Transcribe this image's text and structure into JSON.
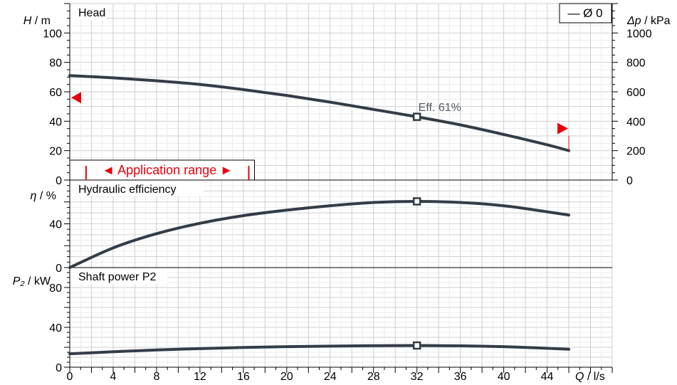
{
  "chart_data": [
    {
      "type": "line",
      "panel": "head",
      "title": "Head",
      "ylabel_var": "H",
      "ylabel_unit": " / m",
      "y2label_var": "Δp",
      "y2label_unit": " / kPa",
      "ylim": [
        0,
        120
      ],
      "yticks": [
        0,
        20,
        40,
        60,
        80,
        100
      ],
      "y2lim": [
        0,
        1200
      ],
      "y2ticks": [
        0,
        200,
        400,
        600,
        800,
        1000
      ],
      "xlim": [
        0,
        50
      ],
      "series": [
        {
          "name": "Ø 0",
          "color": "#333d47",
          "x": [
            0,
            4,
            8,
            12,
            16,
            20,
            24,
            28,
            32,
            36,
            40,
            44,
            46
          ],
          "y": [
            71,
            69.5,
            67.5,
            65,
            61.5,
            57.5,
            53,
            48,
            43,
            37.5,
            31,
            24,
            20
          ]
        }
      ],
      "duty_point": {
        "x": 32,
        "y": 43,
        "label": "Eff.  61%"
      },
      "application_range": {
        "label": "◄ Application range ►",
        "x_start": 1.5,
        "x_end": 16.5
      },
      "range_markers": {
        "left_y": 56,
        "right_x": 46,
        "right_y": 35
      },
      "legend": {
        "label": "— Ø 0",
        "position": "top-right"
      }
    },
    {
      "type": "line",
      "panel": "efficiency",
      "title": "Hydraulic efficiency",
      "ylabel_var": "η",
      "ylabel_unit": " / %",
      "ylim": [
        0,
        80
      ],
      "yticks": [
        0,
        40
      ],
      "xlim": [
        0,
        50
      ],
      "series": [
        {
          "color": "#333d47",
          "x": [
            0,
            4,
            8,
            12,
            16,
            20,
            24,
            28,
            32,
            36,
            40,
            44,
            46
          ],
          "y": [
            0,
            18,
            31,
            40.5,
            47.5,
            52.5,
            56.5,
            59.5,
            60.5,
            59.5,
            56.5,
            51,
            48
          ]
        }
      ],
      "duty_point": {
        "x": 32,
        "y": 60.5
      }
    },
    {
      "type": "line",
      "panel": "power",
      "title": "Shaft power P2",
      "ylabel_var": "P₂",
      "ylabel_unit": " / kW",
      "ylim": [
        0,
        100
      ],
      "yticks": [
        0,
        40,
        80
      ],
      "xlim": [
        0,
        50
      ],
      "xticks": [
        0,
        4,
        8,
        12,
        16,
        20,
        24,
        28,
        32,
        36,
        40,
        44
      ],
      "xlabel_var": "Q",
      "xlabel_unit": " / l/s",
      "series": [
        {
          "color": "#333d47",
          "x": [
            0,
            4,
            8,
            12,
            16,
            20,
            24,
            28,
            32,
            36,
            40,
            44,
            46
          ],
          "y": [
            13.5,
            15.5,
            17.3,
            18.7,
            19.8,
            20.6,
            21.2,
            21.6,
            21.8,
            21.5,
            20.6,
            19,
            18
          ]
        }
      ],
      "duty_point": {
        "x": 32,
        "y": 21.8
      }
    }
  ],
  "colors": {
    "curve": "#333d47",
    "accent": "#e8000b",
    "grid_major": "#cfcfcf",
    "grid_minor": "#ececec",
    "axis": "#000000"
  }
}
